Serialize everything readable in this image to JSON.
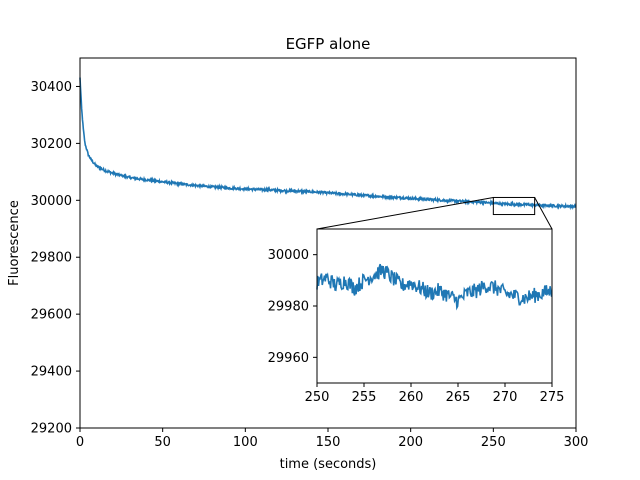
{
  "chart_data": {
    "type": "line",
    "title": "EGFP alone",
    "xlabel": "time (seconds)",
    "ylabel": "Fluorescence",
    "xlim": [
      0,
      300
    ],
    "ylim": [
      29200,
      30500
    ],
    "x_ticks": [
      "0",
      "50",
      "100",
      "150",
      "200",
      "250",
      "300"
    ],
    "y_ticks": [
      "29200",
      "29400",
      "29600",
      "29800",
      "30000",
      "30200",
      "30400"
    ],
    "grid": false,
    "line_color": "#1f77b4",
    "series": [
      {
        "x": [
          0,
          1,
          2,
          3,
          5,
          7,
          10,
          15,
          20,
          30,
          40,
          50,
          60,
          70,
          80,
          90,
          100,
          120,
          140,
          160,
          180,
          200,
          220,
          240,
          250,
          260,
          270,
          280,
          290,
          300
        ],
        "y": [
          30430,
          30320,
          30250,
          30200,
          30160,
          30140,
          30120,
          30105,
          30095,
          30080,
          30072,
          30065,
          30058,
          30052,
          30047,
          30043,
          30040,
          30035,
          30030,
          30022,
          30014,
          30007,
          30000,
          29994,
          29990,
          29986,
          29985,
          29982,
          29980,
          29979
        ]
      }
    ],
    "inset": {
      "xlim": [
        250,
        275
      ],
      "ylim": [
        29950,
        30010
      ],
      "x_ticks": [
        "250",
        "255",
        "260",
        "265",
        "270",
        "275"
      ],
      "y_ticks": [
        "29960",
        "29980",
        "30000"
      ],
      "zoom_box": {
        "x": [
          250,
          275
        ],
        "y": [
          29950,
          30010
        ]
      },
      "series": [
        {
          "x": [
            250,
            251,
            252,
            253,
            254,
            255,
            256,
            257,
            258,
            259,
            260,
            261,
            262,
            263,
            264,
            265,
            266,
            267,
            268,
            269,
            270,
            271,
            272,
            273,
            274,
            275
          ],
          "y": [
            29989,
            29991,
            29988,
            29990,
            29987,
            29990,
            29992,
            29994,
            29991,
            29988,
            29989,
            29987,
            29985,
            29986,
            29984,
            29982,
            29985,
            29986,
            29988,
            29987,
            29985,
            29984,
            29983,
            29984,
            29985,
            29986
          ]
        }
      ]
    }
  }
}
